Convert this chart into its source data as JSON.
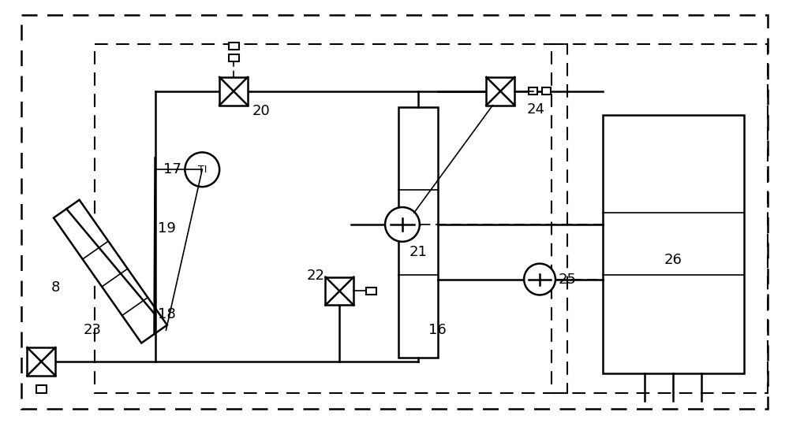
{
  "bg_color": "#ffffff",
  "line_color": "#000000",
  "fig_width": 10.0,
  "fig_height": 5.37,
  "dpi": 100
}
